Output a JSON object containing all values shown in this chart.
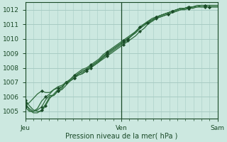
{
  "title": "",
  "xlabel": "Pression niveau de la mer( hPa )",
  "ylabel": "",
  "bg_color": "#cce8e0",
  "grid_color": "#a8ccc4",
  "line_color": "#2d6b3c",
  "dark_line_color": "#1a4a28",
  "ylim": [
    1004.5,
    1012.5
  ],
  "xlim": [
    0,
    48
  ],
  "yticks": [
    1005,
    1006,
    1007,
    1008,
    1009,
    1010,
    1011,
    1012
  ],
  "xtick_labels": [
    "Jeu",
    "Ven",
    "Sam"
  ],
  "xtick_positions": [
    0,
    24,
    48
  ],
  "series": [
    [
      1005.5,
      1005.2,
      1005.0,
      1005.1,
      1005.3,
      1005.8,
      1006.1,
      1006.1,
      1006.4,
      1006.5,
      1006.8,
      1007.1,
      1007.3,
      1007.5,
      1007.6,
      1007.8,
      1008.0,
      1008.2,
      1008.4,
      1008.6,
      1008.8,
      1009.0,
      1009.2,
      1009.4,
      1009.6,
      1009.8,
      1010.0,
      1010.2,
      1010.5,
      1010.7,
      1011.0,
      1011.2,
      1011.4,
      1011.6,
      1011.7,
      1011.8,
      1011.9,
      1012.0,
      1012.1,
      1012.1,
      1012.2,
      1012.2,
      1012.2,
      1012.3,
      1012.3,
      1012.3,
      1012.3,
      1012.3
    ],
    [
      1005.8,
      1005.4,
      1005.1,
      1005.0,
      1005.0,
      1005.4,
      1005.9,
      1006.2,
      1006.5,
      1006.7,
      1007.0,
      1007.1,
      1007.3,
      1007.5,
      1007.6,
      1007.8,
      1008.0,
      1008.2,
      1008.4,
      1008.7,
      1008.9,
      1009.1,
      1009.3,
      1009.5,
      1009.7,
      1009.9,
      1010.2,
      1010.4,
      1010.7,
      1011.0,
      1011.1,
      1011.3,
      1011.4,
      1011.5,
      1011.6,
      1011.7,
      1011.8,
      1011.9,
      1012.0,
      1012.1,
      1012.1,
      1012.2,
      1012.2,
      1012.2,
      1012.2,
      1012.2,
      1012.2,
      1012.2
    ],
    [
      1005.6,
      1005.1,
      1004.9,
      1004.9,
      1005.1,
      1005.5,
      1006.0,
      1006.1,
      1006.4,
      1006.6,
      1007.0,
      1007.1,
      1007.3,
      1007.6,
      1007.7,
      1007.9,
      1008.1,
      1008.3,
      1008.5,
      1008.7,
      1009.0,
      1009.2,
      1009.4,
      1009.6,
      1009.8,
      1010.0,
      1010.2,
      1010.5,
      1010.8,
      1011.0,
      1011.2,
      1011.4,
      1011.5,
      1011.6,
      1011.7,
      1011.8,
      1011.9,
      1012.0,
      1012.1,
      1012.1,
      1012.2,
      1012.2,
      1012.2,
      1012.2,
      1012.2,
      1012.2,
      1012.2,
      1012.2
    ],
    [
      1005.3,
      1005.0,
      1005.0,
      1005.2,
      1005.7,
      1006.0,
      1006.2,
      1006.5,
      1006.7,
      1006.8,
      1007.0,
      1007.2,
      1007.4,
      1007.6,
      1007.8,
      1007.9,
      1008.1,
      1008.3,
      1008.5,
      1008.8,
      1009.0,
      1009.2,
      1009.4,
      1009.6,
      1009.8,
      1010.0,
      1010.2,
      1010.5,
      1010.7,
      1010.9,
      1011.1,
      1011.2,
      1011.4,
      1011.5,
      1011.6,
      1011.7,
      1011.8,
      1011.9,
      1012.0,
      1012.0,
      1012.1,
      1012.1,
      1012.2,
      1012.2,
      1012.2,
      1012.2,
      1012.2,
      1012.2
    ],
    [
      1005.4,
      1005.6,
      1005.9,
      1006.2,
      1006.4,
      1006.3,
      1006.3,
      1006.5,
      1006.6,
      1006.7,
      1007.0,
      1007.2,
      1007.5,
      1007.7,
      1007.9,
      1008.0,
      1008.2,
      1008.4,
      1008.6,
      1008.9,
      1009.1,
      1009.3,
      1009.5,
      1009.7,
      1009.9,
      1010.1,
      1010.3,
      1010.5,
      1010.8,
      1011.0,
      1011.2,
      1011.3,
      1011.5,
      1011.6,
      1011.7,
      1011.8,
      1011.9,
      1012.0,
      1012.1,
      1012.1,
      1012.2,
      1012.2,
      1012.3,
      1012.3,
      1012.3,
      1012.3,
      1012.3,
      1012.3
    ]
  ],
  "marker_every": [
    4,
    5,
    4,
    5,
    4
  ]
}
